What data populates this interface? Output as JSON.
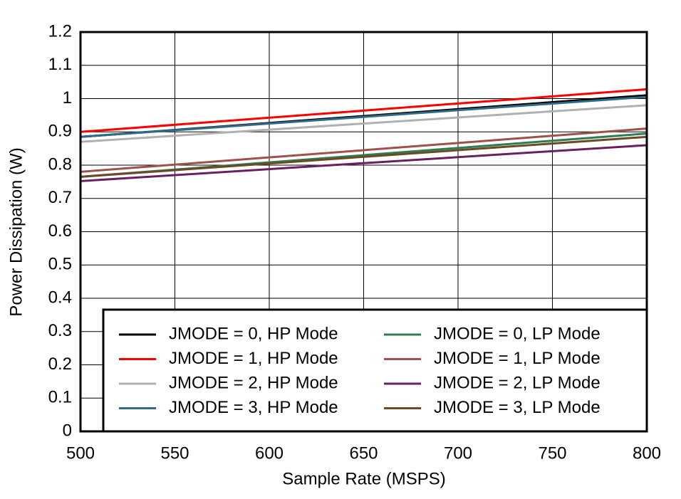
{
  "chart_data": {
    "type": "line",
    "x_label": "Sample Rate (MSPS)",
    "y_label": "Power Dissipation (W)",
    "x": [
      500,
      800
    ],
    "series": [
      {
        "name": "JMODE = 0, HP Mode",
        "color": "#000000",
        "values": [
          0.885,
          1.01
        ]
      },
      {
        "name": "JMODE = 1, HP Mode",
        "color": "#ff0000",
        "values": [
          0.9,
          1.028
        ]
      },
      {
        "name": "JMODE = 2, HP Mode",
        "color": "#b0b0b0",
        "values": [
          0.87,
          0.98
        ]
      },
      {
        "name": "JMODE = 3, HP Mode",
        "color": "#2f6a87",
        "values": [
          0.885,
          1.005
        ]
      },
      {
        "name": "JMODE = 0, LP Mode",
        "color": "#2e7d4f",
        "values": [
          0.765,
          0.895
        ]
      },
      {
        "name": "JMODE = 1, LP Mode",
        "color": "#a0504a",
        "values": [
          0.78,
          0.91
        ]
      },
      {
        "name": "JMODE = 2, LP Mode",
        "color": "#6a2060",
        "values": [
          0.752,
          0.86
        ]
      },
      {
        "name": "JMODE = 3, LP Mode",
        "color": "#6b4a25",
        "values": [
          0.765,
          0.885
        ]
      }
    ],
    "xlim": [
      500,
      800
    ],
    "xticks": [
      500,
      550,
      600,
      650,
      700,
      750,
      800
    ],
    "ylim": [
      0,
      1.2
    ],
    "yticks": [
      0,
      0.1,
      0.2,
      0.3,
      0.4,
      0.5,
      0.6,
      0.7,
      0.8,
      0.9,
      1,
      1.1,
      1.2
    ],
    "grid": true,
    "legend": "lower right"
  }
}
